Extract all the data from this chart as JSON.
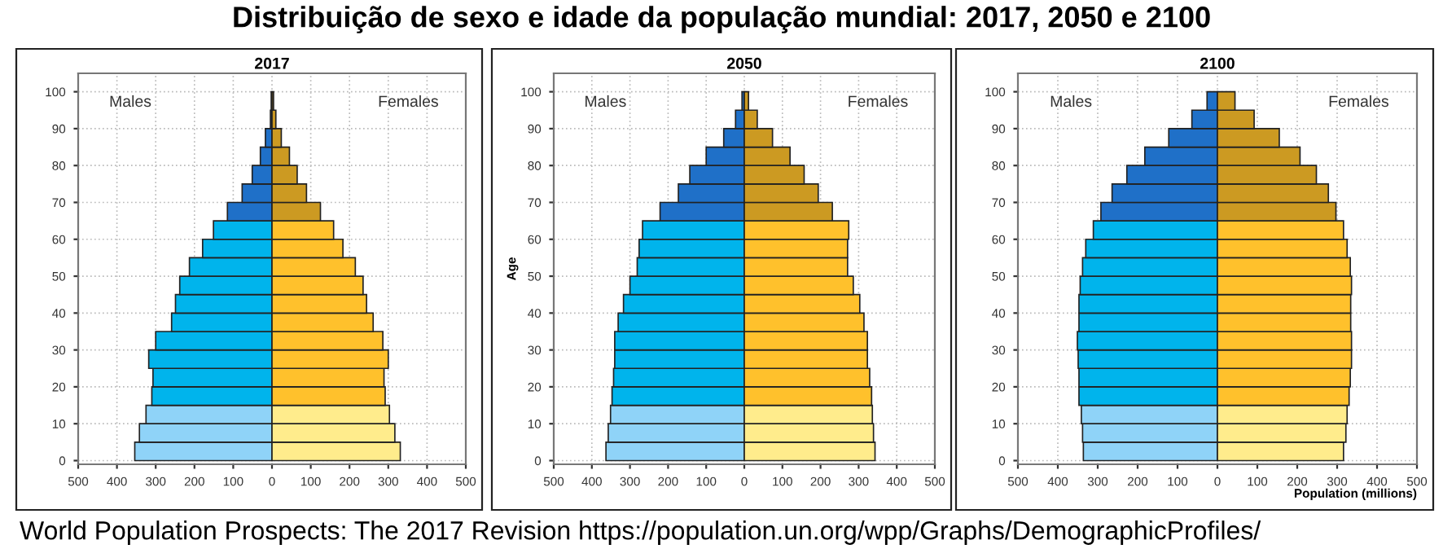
{
  "chart_data": [
    {
      "type": "other",
      "title": "Distribuição de sexo e idade da população mundial: 2017, 2050 e 2100",
      "annotations": [
        "World Population Prospects: The 2017 Revision https://population.un.org/wpp/Graphs/DemographicProfiles/"
      ]
    },
    {
      "type": "bar",
      "orientation": "horizontal",
      "stacked": true,
      "title": "2017",
      "annotations": [
        "Males",
        "Females"
      ],
      "x": [
        2.5,
        7.5,
        12.5,
        17.5,
        22.5,
        27.5,
        32.5,
        37.5,
        42.5,
        47.5,
        52.5,
        57.5,
        62.5,
        67.5,
        72.5,
        77.5,
        82.5,
        87.5,
        92.5,
        97.5
      ],
      "series": [
        {
          "colors": [
            "#8fd3f8",
            "#8fd3f8",
            "#8fd3f8",
            "#00b4ec",
            "#00b4ec",
            "#00b4ec",
            "#00b4ec",
            "#00b4ec",
            "#00b4ec",
            "#00b4ec",
            "#00b4ec",
            "#00b4ec",
            "#00b4ec",
            "#1f70c8",
            "#1f70c8",
            "#1f70c8",
            "#1f70c8",
            "#1f70c8",
            "#1f70c8",
            "#1f70c8"
          ],
          "values": [
            -354,
            -342,
            -325,
            -310,
            -307,
            -318,
            -300,
            -259,
            -249,
            -238,
            -213,
            -179,
            -151,
            -115,
            -77,
            -51,
            -30,
            -17,
            -4,
            -2
          ]
        },
        {
          "colors": [
            "#ffec8c",
            "#ffec8c",
            "#ffec8c",
            "#ffc12c",
            "#ffc12c",
            "#ffc12c",
            "#ffc12c",
            "#ffc12c",
            "#ffc12c",
            "#ffc12c",
            "#ffc12c",
            "#ffc12c",
            "#ffc12c",
            "#cc9a22",
            "#cc9a22",
            "#cc9a22",
            "#cc9a22",
            "#cc9a22",
            "#cc9a22",
            "#cc9a22"
          ],
          "values": [
            331,
            317,
            303,
            292,
            289,
            300,
            286,
            261,
            244,
            235,
            215,
            183,
            159,
            125,
            89,
            65,
            45,
            24,
            10,
            4
          ]
        }
      ],
      "xlim": [
        -500,
        500
      ],
      "xticks": [
        {
          "value": -500,
          "label": "500"
        },
        {
          "value": -400,
          "label": "400"
        },
        {
          "value": -300,
          "label": "300"
        },
        {
          "value": -200,
          "label": "200"
        },
        {
          "value": -100,
          "label": "100"
        },
        0,
        100,
        200,
        300,
        400,
        500
      ],
      "ylim": [
        -1,
        105
      ],
      "yticks": [
        0,
        10,
        20,
        30,
        40,
        50,
        60,
        70,
        80,
        90,
        100
      ],
      "grid": true
    },
    {
      "type": "bar",
      "orientation": "horizontal",
      "stacked": true,
      "title": "2050",
      "ylabel": "Age",
      "annotations": [
        "Males",
        "Females"
      ],
      "x": [
        2.5,
        7.5,
        12.5,
        17.5,
        22.5,
        27.5,
        32.5,
        37.5,
        42.5,
        47.5,
        52.5,
        57.5,
        62.5,
        67.5,
        72.5,
        77.5,
        82.5,
        87.5,
        92.5,
        97.5
      ],
      "series": [
        {
          "colors": [
            "#8fd3f8",
            "#8fd3f8",
            "#8fd3f8",
            "#00b4ec",
            "#00b4ec",
            "#00b4ec",
            "#00b4ec",
            "#00b4ec",
            "#00b4ec",
            "#00b4ec",
            "#00b4ec",
            "#00b4ec",
            "#00b4ec",
            "#1f70c8",
            "#1f70c8",
            "#1f70c8",
            "#1f70c8",
            "#1f70c8",
            "#1f70c8",
            "#1f70c8"
          ],
          "values": [
            -363,
            -357,
            -351,
            -347,
            -343,
            -340,
            -340,
            -331,
            -317,
            -300,
            -281,
            -276,
            -267,
            -221,
            -173,
            -143,
            -100,
            -54,
            -23,
            -6
          ]
        },
        {
          "colors": [
            "#ffec8c",
            "#ffec8c",
            "#ffec8c",
            "#ffc12c",
            "#ffc12c",
            "#ffc12c",
            "#ffc12c",
            "#ffc12c",
            "#ffc12c",
            "#ffc12c",
            "#ffc12c",
            "#ffc12c",
            "#ffc12c",
            "#cc9a22",
            "#cc9a22",
            "#cc9a22",
            "#cc9a22",
            "#cc9a22",
            "#cc9a22",
            "#cc9a22"
          ],
          "values": [
            343,
            339,
            336,
            334,
            329,
            323,
            323,
            314,
            303,
            286,
            271,
            271,
            274,
            231,
            194,
            157,
            120,
            74,
            34,
            11
          ]
        }
      ],
      "xlim": [
        -500,
        500
      ],
      "xticks": [
        {
          "value": -500,
          "label": "500"
        },
        {
          "value": -400,
          "label": "400"
        },
        {
          "value": -300,
          "label": "300"
        },
        {
          "value": -200,
          "label": "200"
        },
        {
          "value": -100,
          "label": "100"
        },
        0,
        100,
        200,
        300,
        400,
        500
      ],
      "ylim": [
        -1,
        105
      ],
      "yticks": [
        0,
        10,
        20,
        30,
        40,
        50,
        60,
        70,
        80,
        90,
        100
      ],
      "grid": true
    },
    {
      "type": "bar",
      "orientation": "horizontal",
      "stacked": true,
      "title": "2100",
      "xlabel": "Population (millions)",
      "annotations": [
        "Males",
        "Females"
      ],
      "x": [
        2.5,
        7.5,
        12.5,
        17.5,
        22.5,
        27.5,
        32.5,
        37.5,
        42.5,
        47.5,
        52.5,
        57.5,
        62.5,
        67.5,
        72.5,
        77.5,
        82.5,
        87.5,
        92.5,
        97.5
      ],
      "series": [
        {
          "colors": [
            "#8fd3f8",
            "#8fd3f8",
            "#8fd3f8",
            "#00b4ec",
            "#00b4ec",
            "#00b4ec",
            "#00b4ec",
            "#00b4ec",
            "#00b4ec",
            "#00b4ec",
            "#00b4ec",
            "#00b4ec",
            "#00b4ec",
            "#1f70c8",
            "#1f70c8",
            "#1f70c8",
            "#1f70c8",
            "#1f70c8",
            "#1f70c8",
            "#1f70c8"
          ],
          "values": [
            -336,
            -338,
            -341,
            -347,
            -347,
            -349,
            -351,
            -347,
            -347,
            -344,
            -338,
            -330,
            -311,
            -292,
            -264,
            -227,
            -182,
            -122,
            -64,
            -26
          ]
        },
        {
          "colors": [
            "#ffec8c",
            "#ffec8c",
            "#ffec8c",
            "#ffc12c",
            "#ffc12c",
            "#ffc12c",
            "#ffc12c",
            "#ffc12c",
            "#ffc12c",
            "#ffc12c",
            "#ffc12c",
            "#ffc12c",
            "#ffc12c",
            "#cc9a22",
            "#cc9a22",
            "#cc9a22",
            "#cc9a22",
            "#cc9a22",
            "#cc9a22",
            "#cc9a22"
          ],
          "values": [
            316,
            322,
            325,
            330,
            333,
            336,
            336,
            334,
            334,
            336,
            333,
            325,
            316,
            297,
            278,
            248,
            207,
            155,
            92,
            44
          ]
        }
      ],
      "xlim": [
        -500,
        500
      ],
      "xticks": [
        {
          "value": -500,
          "label": "500"
        },
        {
          "value": -400,
          "label": "400"
        },
        {
          "value": -300,
          "label": "300"
        },
        {
          "value": -200,
          "label": "200"
        },
        {
          "value": -100,
          "label": "100"
        },
        0,
        100,
        200,
        300,
        400,
        500
      ],
      "ylim": [
        -1,
        105
      ],
      "yticks": [
        0,
        10,
        20,
        30,
        40,
        50,
        60,
        70,
        80,
        90,
        100
      ],
      "grid": true
    }
  ]
}
